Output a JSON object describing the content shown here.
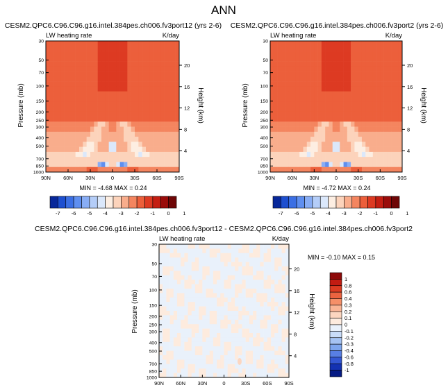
{
  "page_title": "ANN",
  "chart_data": [
    {
      "type": "heatmap",
      "title": "CESM2.QPC6.C96.C96.g16.intel.384pes.ch006.fv3port12 (yrs 2-6)",
      "left_label": "LW heating rate",
      "right_label": "K/day",
      "ylabel": "Pressure (mb)",
      "ylabel_right": "Height (km)",
      "xticks": [
        "90N",
        "60N",
        "30N",
        "0",
        "30S",
        "60S",
        "90S"
      ],
      "yticks": [
        "30",
        "50",
        "70",
        "100",
        "150",
        "200",
        "250",
        "300",
        "400",
        "500",
        "700",
        "850",
        "1000"
      ],
      "height_ticks": [
        "20",
        "16",
        "12",
        "8",
        "4"
      ],
      "stats": "MIN = -4.68 MAX = 0.24",
      "min": -4.68,
      "max": 0.24,
      "colorbar_ticks": [
        "-7",
        "-6",
        "-5",
        "-4",
        "-3",
        "-2",
        "-1",
        "0",
        "1"
      ]
    },
    {
      "type": "heatmap",
      "title": "CESM2.QPC6.C96.C96.g16.intel.384pes.ch006.fv3port2 (yrs 2-6)",
      "left_label": "LW heating rate",
      "right_label": "K/day",
      "ylabel": "Pressure (mb)",
      "ylabel_right": "Height (km)",
      "xticks": [
        "90N",
        "60N",
        "30N",
        "0",
        "30S",
        "60S",
        "90S"
      ],
      "yticks": [
        "30",
        "50",
        "70",
        "100",
        "150",
        "200",
        "250",
        "300",
        "400",
        "500",
        "700",
        "850",
        "1000"
      ],
      "height_ticks": [
        "20",
        "16",
        "12",
        "8",
        "4"
      ],
      "stats": "MIN = -4.72 MAX = 0.24",
      "min": -4.72,
      "max": 0.24,
      "colorbar_ticks": [
        "-7",
        "-6",
        "-5",
        "-4",
        "-3",
        "-2",
        "-1",
        "0",
        "1"
      ]
    },
    {
      "type": "heatmap",
      "title": "CESM2.QPC6.C96.C96.g16.intel.384pes.ch006.fv3port12 - CESM2.QPC6.C96.C96.g16.intel.384pes.ch006.fv3port2",
      "left_label": "LW heating rate",
      "right_label": "K/day",
      "ylabel": "Pressure (mb)",
      "ylabel_right": "Height (km)",
      "xticks": [
        "90N",
        "60N",
        "30N",
        "0",
        "30S",
        "60S",
        "90S"
      ],
      "yticks": [
        "30",
        "50",
        "70",
        "100",
        "150",
        "200",
        "250",
        "300",
        "400",
        "500",
        "700",
        "850",
        "1000"
      ],
      "height_ticks": [
        "20",
        "16",
        "12",
        "8",
        "4"
      ],
      "stats": "MIN = -0.10 MAX = 0.15",
      "min": -0.1,
      "max": 0.15,
      "colorbar_ticks": [
        "1",
        "0.8",
        "0.6",
        "0.4",
        "0.3",
        "0.2",
        "0.1",
        "0",
        "-0.1",
        "-0.2",
        "-0.3",
        "-0.4",
        "-0.6",
        "-0.8",
        "-1"
      ]
    }
  ],
  "colors": {
    "abs_scale": [
      "#08289a",
      "#1d4fd0",
      "#3b6fe4",
      "#5f8ff0",
      "#88adf5",
      "#b4cdf8",
      "#dbe8fb",
      "#fdeee2",
      "#fcd3bb",
      "#f9ad8c",
      "#f4855f",
      "#ec5f3b",
      "#dd3a22",
      "#c41e12",
      "#9a0c0a",
      "#6e0606"
    ],
    "diff_scale": [
      "#8e0a0a",
      "#c21c12",
      "#dc3c22",
      "#ec6340",
      "#f58f68",
      "#f9b596",
      "#fcd6c0",
      "#fdebde",
      "#e9f1fb",
      "#c9dcf8",
      "#a5c3f3",
      "#7ea6ee",
      "#587fe4",
      "#3457d3",
      "#1432b2",
      "#061b85"
    ]
  }
}
